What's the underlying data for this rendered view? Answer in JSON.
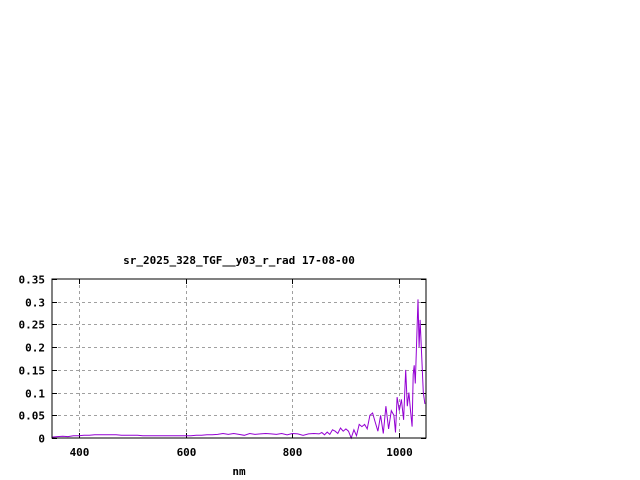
{
  "chart_data": {
    "type": "line",
    "title": "sr_2025_328_TGF__y03_r_rad 17-08-00",
    "xlabel": "nm",
    "ylabel": "",
    "xlim": [
      350,
      1050
    ],
    "ylim": [
      0,
      0.35
    ],
    "xticks": [
      400,
      600,
      800,
      1000
    ],
    "yticks": [
      0,
      0.05,
      0.1,
      0.15,
      0.2,
      0.25,
      0.3,
      0.35
    ],
    "ytick_labels": [
      "0",
      "0.05",
      "0.1",
      "0.15",
      "0.2",
      "0.25",
      "0.3",
      "0.35"
    ],
    "xtick_labels": [
      "400",
      "600",
      "800",
      "1000"
    ],
    "grid": true,
    "line_color": "#9400d3",
    "series": [
      {
        "x": [
          350,
          360,
          370,
          380,
          390,
          400,
          410,
          420,
          430,
          440,
          450,
          460,
          470,
          480,
          490,
          500,
          510,
          520,
          530,
          540,
          550,
          560,
          570,
          580,
          590,
          600,
          610,
          620,
          630,
          640,
          650,
          660,
          670,
          680,
          690,
          700,
          710,
          720,
          730,
          740,
          750,
          760,
          770,
          780,
          790,
          800,
          810,
          820,
          830,
          840,
          850,
          855,
          860,
          865,
          870,
          875,
          880,
          885,
          890,
          895,
          900,
          905,
          910,
          915,
          920,
          925,
          930,
          935,
          940,
          945,
          950,
          955,
          960,
          965,
          970,
          975,
          980,
          985,
          990,
          993,
          996,
          1000,
          1004,
          1008,
          1012,
          1015,
          1018,
          1021,
          1024,
          1026,
          1028,
          1030,
          1033,
          1035,
          1037,
          1039,
          1042,
          1045,
          1048
        ],
        "y": [
          0.002,
          0.003,
          0.004,
          0.003,
          0.005,
          0.005,
          0.006,
          0.006,
          0.007,
          0.007,
          0.007,
          0.007,
          0.007,
          0.006,
          0.006,
          0.006,
          0.006,
          0.005,
          0.005,
          0.005,
          0.005,
          0.005,
          0.005,
          0.005,
          0.005,
          0.005,
          0.005,
          0.006,
          0.006,
          0.007,
          0.007,
          0.008,
          0.01,
          0.008,
          0.01,
          0.008,
          0.006,
          0.01,
          0.008,
          0.009,
          0.01,
          0.009,
          0.008,
          0.01,
          0.007,
          0.01,
          0.009,
          0.006,
          0.009,
          0.01,
          0.009,
          0.012,
          0.007,
          0.013,
          0.008,
          0.018,
          0.015,
          0.01,
          0.022,
          0.015,
          0.02,
          0.015,
          0.0,
          0.018,
          0.005,
          0.03,
          0.025,
          0.03,
          0.02,
          0.05,
          0.055,
          0.035,
          0.015,
          0.05,
          0.01,
          0.07,
          0.02,
          0.06,
          0.05,
          0.012,
          0.09,
          0.06,
          0.085,
          0.04,
          0.15,
          0.07,
          0.1,
          0.06,
          0.025,
          0.14,
          0.16,
          0.12,
          0.23,
          0.305,
          0.2,
          0.26,
          0.18,
          0.1,
          0.075
        ]
      }
    ]
  }
}
